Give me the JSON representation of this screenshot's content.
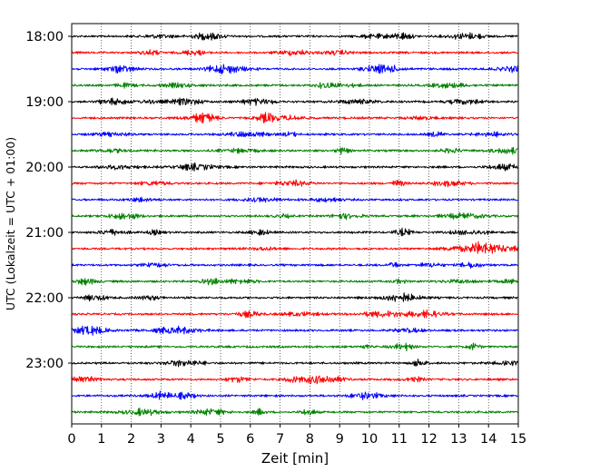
{
  "chart_data": {
    "type": "line",
    "title": "",
    "xlabel": "Zeit  [min]",
    "ylabel": "UTC (Lokalzeit = UTC + 01:00)",
    "xlim": [
      0,
      15
    ],
    "x_ticks": [
      "0",
      "1",
      "2",
      "3",
      "4",
      "5",
      "6",
      "7",
      "8",
      "9",
      "10",
      "11",
      "12",
      "13",
      "14",
      "15"
    ],
    "grid": "vertical dotted",
    "hour_labels": [
      "18:00",
      "19:00",
      "20:00",
      "21:00",
      "22:00",
      "23:00"
    ],
    "colors": [
      "#000000",
      "#ff0000",
      "#0000ff",
      "#008000"
    ],
    "traces": [
      {
        "start": "18:00",
        "color": "#000000"
      },
      {
        "start": "18:15",
        "color": "#ff0000"
      },
      {
        "start": "18:30",
        "color": "#0000ff"
      },
      {
        "start": "18:45",
        "color": "#008000"
      },
      {
        "start": "19:00",
        "color": "#000000"
      },
      {
        "start": "19:15",
        "color": "#ff0000"
      },
      {
        "start": "19:30",
        "color": "#0000ff"
      },
      {
        "start": "19:45",
        "color": "#008000"
      },
      {
        "start": "20:00",
        "color": "#000000"
      },
      {
        "start": "20:15",
        "color": "#ff0000"
      },
      {
        "start": "20:30",
        "color": "#0000ff"
      },
      {
        "start": "20:45",
        "color": "#008000"
      },
      {
        "start": "21:00",
        "color": "#000000"
      },
      {
        "start": "21:15",
        "color": "#ff0000"
      },
      {
        "start": "21:30",
        "color": "#0000ff"
      },
      {
        "start": "21:45",
        "color": "#008000"
      },
      {
        "start": "22:00",
        "color": "#000000"
      },
      {
        "start": "22:15",
        "color": "#ff0000"
      },
      {
        "start": "22:30",
        "color": "#0000ff"
      },
      {
        "start": "22:45",
        "color": "#008000"
      },
      {
        "start": "23:00",
        "color": "#000000"
      },
      {
        "start": "23:15",
        "color": "#ff0000"
      },
      {
        "start": "23:30",
        "color": "#0000ff"
      },
      {
        "start": "23:45",
        "color": "#008000"
      }
    ]
  }
}
